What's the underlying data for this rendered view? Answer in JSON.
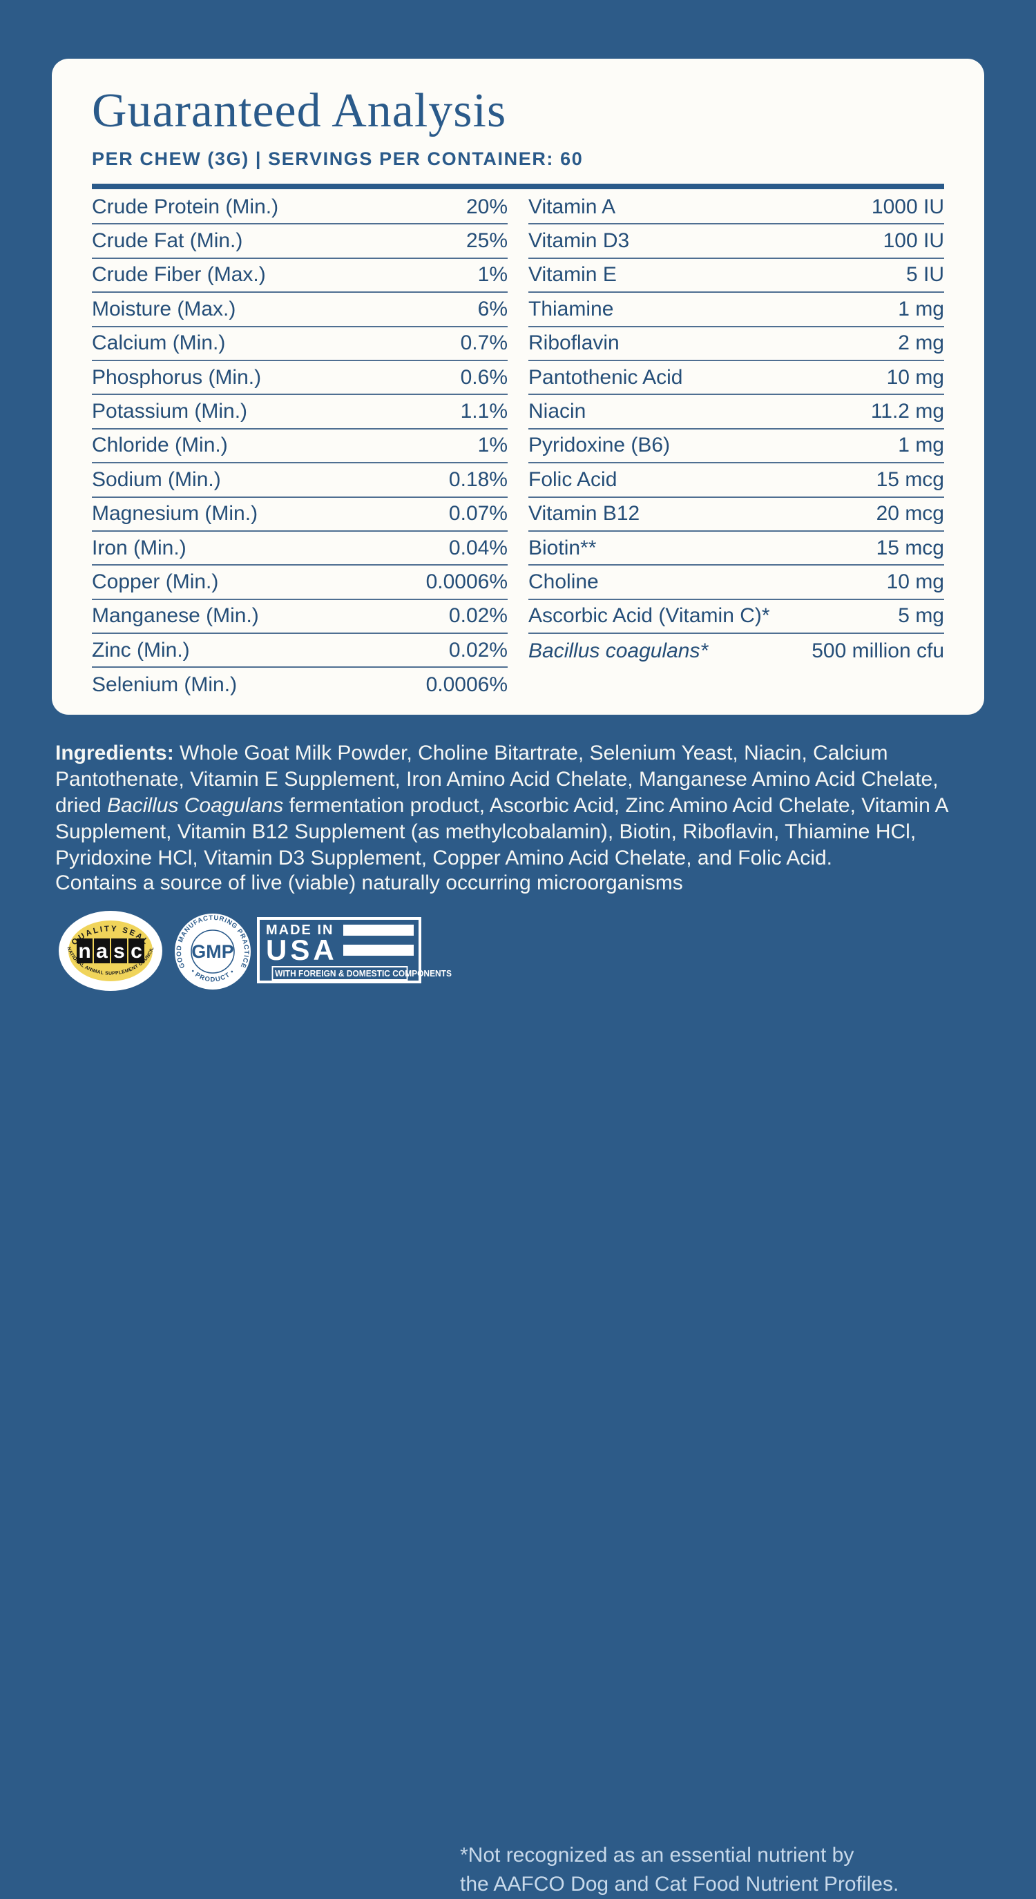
{
  "title": "Guaranteed Analysis",
  "subtitle": "PER CHEW (3G) | SERVINGS PER CONTAINER: 60",
  "table": {
    "left": [
      {
        "name": "Crude Protein (Min.)",
        "value": "20%"
      },
      {
        "name": "Crude Fat (Min.)",
        "value": "25%"
      },
      {
        "name": "Crude Fiber (Max.)",
        "value": "1%"
      },
      {
        "name": "Moisture (Max.)",
        "value": "6%"
      },
      {
        "name": "Calcium (Min.)",
        "value": "0.7%"
      },
      {
        "name": "Phosphorus (Min.)",
        "value": "0.6%"
      },
      {
        "name": "Potassium (Min.)",
        "value": "1.1%"
      },
      {
        "name": "Chloride (Min.)",
        "value": "1%"
      },
      {
        "name": "Sodium (Min.)",
        "value": "0.18%"
      },
      {
        "name": "Magnesium (Min.)",
        "value": "0.07%"
      },
      {
        "name": "Iron (Min.)",
        "value": "0.04%"
      },
      {
        "name": "Copper (Min.)",
        "value": "0.0006%"
      },
      {
        "name": "Manganese (Min.)",
        "value": "0.02%"
      },
      {
        "name": "Zinc (Min.)",
        "value": "0.02%"
      },
      {
        "name": "Selenium (Min.)",
        "value": "0.0006%"
      }
    ],
    "right": [
      {
        "name": "Vitamin A",
        "value": "1000 IU"
      },
      {
        "name": "Vitamin D3",
        "value": "100 IU"
      },
      {
        "name": "Vitamin E",
        "value": "5 IU"
      },
      {
        "name": "Thiamine",
        "value": "1 mg"
      },
      {
        "name": "Riboflavin",
        "value": "2 mg"
      },
      {
        "name": "Pantothenic Acid",
        "value": "10 mg"
      },
      {
        "name": "Niacin",
        "value": "11.2 mg"
      },
      {
        "name": "Pyridoxine (B6)",
        "value": "1 mg"
      },
      {
        "name": "Folic Acid",
        "value": "15 mcg"
      },
      {
        "name": "Vitamin B12",
        "value": "20 mcg"
      },
      {
        "name": "Biotin**",
        "value": "15 mcg"
      },
      {
        "name": "Choline",
        "value": "10 mg"
      },
      {
        "name": "Ascorbic Acid (Vitamin C)*",
        "value": "5 mg"
      },
      {
        "name": "Bacillus coagulans*",
        "value": "500 million cfu",
        "italic": true
      }
    ]
  },
  "ingredients": {
    "label": "Ingredients:",
    "before_italic": " Whole Goat Milk Powder, Choline Bitartrate, Selenium Yeast, Niacin, Calcium Pantothenate, Vitamin E Supplement, Iron Amino Acid Chelate, Manganese Amino Acid Chelate, dried ",
    "italic": "Bacillus Coagulans",
    "after_italic": " fermentation product, Ascorbic Acid, Zinc Amino Acid Chelate, Vitamin A Supplement, Vitamin B12 Supplement (as methylcobalamin), Biotin, Riboflavin, Thiamine HCl, Pyridoxine HCl, Vitamin D3 Supplement, Copper Amino Acid Chelate, and Folic Acid."
  },
  "contains_note": "Contains a source of live (viable) naturally occurring microorganisms",
  "footnote": {
    "line1": "*Not recognized as an essential nutrient by",
    "line2": "the AAFCO Dog and Cat Food Nutrient Profiles."
  },
  "seals": {
    "nasc": {
      "top_arc": "QUALITY SEAL",
      "letters": [
        "n",
        "a",
        "s",
        "c"
      ],
      "bottom_arc": "NATIONAL ANIMAL SUPPLEMENT COUNCIL"
    },
    "gmp": {
      "ring_top": "GOOD MANUFACTURING PRACTICE",
      "ring_bottom": "• PRODUCT •",
      "center": "GMP"
    },
    "usa": {
      "line1": "MADE IN",
      "line2": "USA",
      "banner": "WITH FOREIGN & DOMESTIC COMPONENTS"
    }
  },
  "colors": {
    "background": "#2d5b88",
    "card": "#fdfcf8",
    "navy": "#2a5a8a",
    "table_text": "#254e78",
    "divider": "#4f6f92",
    "nasc_yellow": "#f0d45a",
    "footnote_text": "#c8d9ea"
  }
}
